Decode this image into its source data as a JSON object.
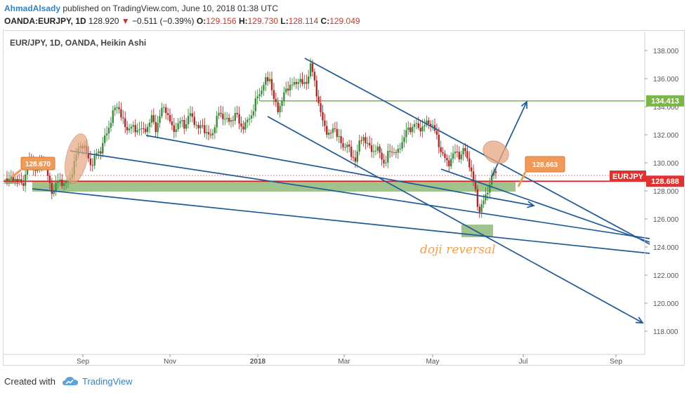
{
  "header": {
    "author": "AhmadAlsady",
    "published_text": "published on TradingView.com, June 10, 2018 01:38 UTC",
    "symbol": "OANDA:EURJPY, 1D",
    "last": "128.920",
    "change_arrow": "▼",
    "change": "−0.511 (−0.39%)",
    "open_label": "O:",
    "open": "129.156",
    "high_label": "H:",
    "high": "129.730",
    "low_label": "L:",
    "low": "128.114",
    "close_label": "C:",
    "close": "129.049"
  },
  "chart_title": "EUR/JPY, 1D, OANDA, Heikin Ashi",
  "footer": {
    "created_with": "Created with",
    "brand": "TradingView",
    "logo_icon": "tradingview-cloud-icon"
  },
  "colors": {
    "up_candle": "#3c8c3c",
    "down_candle": "#b02a2a",
    "trendline": "#1f5a96",
    "support_zone": "#8fb87a",
    "resistance_line": "#7ab648",
    "price_line": "#e02020",
    "highlight_ellipse": "#e8a882",
    "callout": "#f09a5a",
    "annotation_text": "#f0a050"
  },
  "chart_data": {
    "type": "candlestick",
    "chart_style": "Heikin Ashi",
    "symbol": "EUR/JPY",
    "timeframe": "1D",
    "broker": "OANDA",
    "y_axis": {
      "range": [
        116.8,
        138.6
      ],
      "tick_labels": [
        "118.000",
        "120.000",
        "122.000",
        "124.000",
        "126.000",
        "128.000",
        "130.000",
        "132.000",
        "134.000",
        "136.000",
        "138.000"
      ]
    },
    "x_axis": {
      "tick_labels": [
        "Sep",
        "Nov",
        "2018",
        "Mar",
        "May",
        "Jul",
        "Sep"
      ]
    },
    "grid": false,
    "price_scale_badges": [
      {
        "label": "134.413",
        "value": 134.413
      },
      {
        "label": "EURJPY",
        "value": 129.05
      },
      {
        "label": "128.688",
        "value": 128.688
      }
    ],
    "callouts": [
      {
        "label": "128.670"
      },
      {
        "label": "128.663"
      }
    ],
    "annotations": [
      {
        "text": "doji reversal"
      }
    ],
    "horizontal_levels": [
      {
        "name": "resistance",
        "value": 134.413
      },
      {
        "name": "price_line",
        "value": 128.688
      }
    ],
    "candle_path": [
      [
        0,
        128.9
      ],
      [
        6,
        128.7
      ],
      [
        10,
        129.0
      ],
      [
        16,
        128.8
      ],
      [
        24,
        128.4
      ],
      [
        30,
        129.5
      ],
      [
        36,
        130.5
      ],
      [
        42,
        129.3
      ],
      [
        48,
        129.8
      ],
      [
        54,
        130.2
      ],
      [
        60,
        129.0
      ],
      [
        64,
        128.2
      ],
      [
        68,
        127.9
      ],
      [
        72,
        128.5
      ],
      [
        78,
        128.8
      ],
      [
        84,
        128.4
      ],
      [
        90,
        128.7
      ],
      [
        96,
        129.6
      ],
      [
        100,
        130.4
      ],
      [
        106,
        131.4
      ],
      [
        112,
        131.0
      ],
      [
        118,
        130.3
      ],
      [
        124,
        129.8
      ],
      [
        130,
        130.8
      ],
      [
        136,
        130.9
      ],
      [
        142,
        131.9
      ],
      [
        148,
        132.7
      ],
      [
        154,
        133.7
      ],
      [
        160,
        134.2
      ],
      [
        166,
        133.0
      ],
      [
        172,
        132.4
      ],
      [
        178,
        132.6
      ],
      [
        184,
        132.3
      ],
      [
        190,
        132.5
      ],
      [
        196,
        132.2
      ],
      [
        202,
        132.6
      ],
      [
        208,
        133.2
      ],
      [
        214,
        132.4
      ],
      [
        220,
        133.4
      ],
      [
        226,
        134.1
      ],
      [
        232,
        133.2
      ],
      [
        238,
        132.3
      ],
      [
        244,
        132.6
      ],
      [
        250,
        133.0
      ],
      [
        256,
        132.6
      ],
      [
        262,
        133.5
      ],
      [
        268,
        133.1
      ],
      [
        274,
        132.3
      ],
      [
        280,
        132.8
      ],
      [
        286,
        132.0
      ],
      [
        292,
        131.9
      ],
      [
        298,
        132.7
      ],
      [
        304,
        133.6
      ],
      [
        310,
        133.3
      ],
      [
        316,
        132.9
      ],
      [
        322,
        133.1
      ],
      [
        328,
        133.5
      ],
      [
        334,
        132.7
      ],
      [
        340,
        132.5
      ],
      [
        346,
        133.2
      ],
      [
        352,
        133.6
      ],
      [
        358,
        134.7
      ],
      [
        364,
        135.2
      ],
      [
        370,
        135.8
      ],
      [
        376,
        136.1
      ],
      [
        382,
        134.4
      ],
      [
        388,
        133.8
      ],
      [
        394,
        134.5
      ],
      [
        400,
        135.3
      ],
      [
        406,
        135.6
      ],
      [
        412,
        135.5
      ],
      [
        418,
        136.1
      ],
      [
        424,
        135.4
      ],
      [
        430,
        136.0
      ],
      [
        434,
        137.0
      ],
      [
        438,
        136.2
      ],
      [
        442,
        135.2
      ],
      [
        446,
        134.2
      ],
      [
        450,
        133.1
      ],
      [
        456,
        132.4
      ],
      [
        462,
        131.9
      ],
      [
        468,
        132.6
      ],
      [
        474,
        131.8
      ],
      [
        480,
        131.0
      ],
      [
        486,
        131.5
      ],
      [
        492,
        130.4
      ],
      [
        498,
        130.3
      ],
      [
        504,
        131.4
      ],
      [
        510,
        131.9
      ],
      [
        516,
        131.2
      ],
      [
        522,
        130.8
      ],
      [
        528,
        131.1
      ],
      [
        534,
        130.5
      ],
      [
        540,
        129.9
      ],
      [
        546,
        130.8
      ],
      [
        552,
        130.9
      ],
      [
        558,
        130.6
      ],
      [
        564,
        131.5
      ],
      [
        570,
        132.2
      ],
      [
        576,
        132.4
      ],
      [
        582,
        132.8
      ],
      [
        588,
        132.4
      ],
      [
        594,
        132.6
      ],
      [
        600,
        132.8
      ],
      [
        606,
        132.9
      ],
      [
        612,
        132.1
      ],
      [
        618,
        131.1
      ],
      [
        624,
        130.4
      ],
      [
        630,
        129.9
      ],
      [
        636,
        130.5
      ],
      [
        642,
        130.8
      ],
      [
        648,
        130.4
      ],
      [
        652,
        131.0
      ],
      [
        656,
        130.6
      ],
      [
        660,
        130.0
      ],
      [
        664,
        129.0
      ],
      [
        668,
        128.4
      ],
      [
        672,
        127.0
      ],
      [
        676,
        126.5
      ],
      [
        680,
        127.2
      ],
      [
        684,
        127.8
      ],
      [
        688,
        128.3
      ],
      [
        692,
        128.8
      ],
      [
        696,
        129.6
      ],
      [
        700,
        129.0
      ]
    ]
  }
}
